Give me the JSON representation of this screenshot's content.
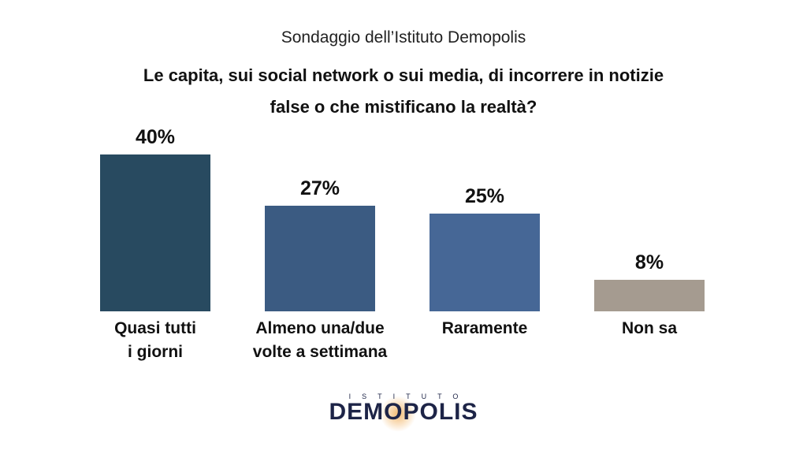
{
  "chart_data": {
    "type": "bar",
    "subtitle": "Sondaggio dell’Istituto Demopolis",
    "title": "Le capita, sui social network o sui media, di incorrere in notizie\nfalse o che mistificano la realtà?",
    "categories": [
      "Quasi tutti\ni giorni",
      "Almeno una/due\nvolte a settimana",
      "Raramente",
      "Non sa"
    ],
    "values": [
      40,
      27,
      25,
      8
    ],
    "value_labels": [
      "40%",
      "27%",
      "25%",
      "8%"
    ],
    "colors": [
      "#284a60",
      "#3b5b82",
      "#466796",
      "#a59b90"
    ]
  },
  "logo": {
    "top": "ISTITUTO",
    "name": "DEMOPOLIS"
  }
}
